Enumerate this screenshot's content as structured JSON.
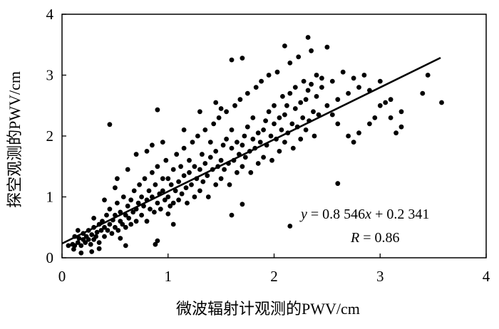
{
  "chart_data": {
    "type": "scatter",
    "xlabel": "微波辐射计观测的PWV/cm",
    "ylabel": "探空观测的PWV/cm",
    "xlim": [
      0,
      4
    ],
    "ylim": [
      0,
      4
    ],
    "xticks": [
      "0",
      "1",
      "2",
      "3",
      "4"
    ],
    "yticks": [
      "0",
      "1",
      "2",
      "3",
      "4"
    ],
    "grid": false,
    "marker_color": "#000000",
    "fit_line": {
      "slope": 0.8546,
      "intercept": 0.2341,
      "x_range": [
        0.0,
        3.57
      ]
    },
    "annotations": {
      "equation": {
        "y_var": "y",
        "eq_part": " = 0.8 546",
        "x_var": "x",
        "tail": " + 0.2 341"
      },
      "r_value": {
        "r_var": "R",
        "eq_part": " = 0.86"
      }
    },
    "points": [
      [
        0.06,
        0.2
      ],
      [
        0.1,
        0.22
      ],
      [
        0.11,
        0.14
      ],
      [
        0.12,
        0.2
      ],
      [
        0.15,
        0.25
      ],
      [
        0.16,
        0.32
      ],
      [
        0.18,
        0.08
      ],
      [
        0.18,
        0.2
      ],
      [
        0.2,
        0.3
      ],
      [
        0.2,
        0.4
      ],
      [
        0.22,
        0.25
      ],
      [
        0.23,
        0.35
      ],
      [
        0.25,
        0.3
      ],
      [
        0.25,
        0.45
      ],
      [
        0.27,
        0.22
      ],
      [
        0.28,
        0.38
      ],
      [
        0.3,
        0.3
      ],
      [
        0.3,
        0.5
      ],
      [
        0.32,
        0.35
      ],
      [
        0.33,
        0.42
      ],
      [
        0.35,
        0.25
      ],
      [
        0.35,
        0.55
      ],
      [
        0.37,
        0.45
      ],
      [
        0.38,
        0.6
      ],
      [
        0.4,
        0.35
      ],
      [
        0.4,
        0.5
      ],
      [
        0.42,
        0.7
      ],
      [
        0.43,
        0.45
      ],
      [
        0.45,
        0.55
      ],
      [
        0.45,
        0.8
      ],
      [
        0.47,
        0.4
      ],
      [
        0.48,
        0.62
      ],
      [
        0.5,
        0.5
      ],
      [
        0.5,
        0.7
      ],
      [
        0.52,
        0.9
      ],
      [
        0.53,
        0.45
      ],
      [
        0.55,
        0.6
      ],
      [
        0.55,
        0.75
      ],
      [
        0.57,
        0.55
      ],
      [
        0.58,
        1.0
      ],
      [
        0.6,
        0.7
      ],
      [
        0.6,
        0.5
      ],
      [
        0.62,
        0.85
      ],
      [
        0.63,
        0.65
      ],
      [
        0.65,
        0.95
      ],
      [
        0.65,
        0.55
      ],
      [
        0.67,
        0.75
      ],
      [
        0.68,
        1.1
      ],
      [
        0.7,
        0.8
      ],
      [
        0.7,
        0.6
      ],
      [
        0.72,
        0.9
      ],
      [
        0.73,
        1.2
      ],
      [
        0.75,
        0.7
      ],
      [
        0.75,
        1.0
      ],
      [
        0.77,
        0.85
      ],
      [
        0.78,
        1.3
      ],
      [
        0.8,
        0.95
      ],
      [
        0.8,
        0.6
      ],
      [
        0.82,
        1.1
      ],
      [
        0.83,
        0.8
      ],
      [
        0.85,
        1.0
      ],
      [
        0.85,
        1.4
      ],
      [
        0.87,
        0.75
      ],
      [
        0.88,
        1.2
      ],
      [
        0.9,
        0.9
      ],
      [
        0.9,
        1.5
      ],
      [
        0.92,
        1.05
      ],
      [
        0.93,
        0.8
      ],
      [
        0.95,
        1.3
      ],
      [
        0.95,
        1.1
      ],
      [
        0.97,
        0.95
      ],
      [
        0.98,
        1.6
      ],
      [
        1.0,
        1.0
      ],
      [
        1.0,
        1.3
      ],
      [
        1.02,
        0.85
      ],
      [
        1.03,
        1.2
      ],
      [
        1.05,
        1.45
      ],
      [
        1.05,
        0.9
      ],
      [
        1.07,
        1.1
      ],
      [
        1.08,
        1.7
      ],
      [
        1.1,
        1.25
      ],
      [
        1.1,
        0.95
      ],
      [
        1.12,
        1.5
      ],
      [
        1.13,
        1.05
      ],
      [
        1.15,
        1.35
      ],
      [
        1.15,
        1.8
      ],
      [
        1.17,
        1.15
      ],
      [
        1.18,
        0.9
      ],
      [
        1.2,
        1.4
      ],
      [
        1.2,
        1.6
      ],
      [
        1.22,
        1.2
      ],
      [
        1.23,
        1.9
      ],
      [
        1.25,
        1.0
      ],
      [
        1.25,
        1.5
      ],
      [
        1.27,
        1.3
      ],
      [
        1.28,
        2.0
      ],
      [
        1.3,
        1.45
      ],
      [
        1.3,
        1.1
      ],
      [
        1.32,
        1.7
      ],
      [
        1.33,
        1.25
      ],
      [
        1.35,
        1.55
      ],
      [
        1.35,
        2.1
      ],
      [
        1.37,
        1.35
      ],
      [
        1.38,
        1.0
      ],
      [
        1.4,
        1.65
      ],
      [
        1.4,
        1.9
      ],
      [
        1.42,
        1.45
      ],
      [
        1.43,
        2.2
      ],
      [
        1.45,
        1.2
      ],
      [
        1.45,
        1.75
      ],
      [
        1.47,
        1.5
      ],
      [
        1.48,
        2.3
      ],
      [
        1.5,
        1.6
      ],
      [
        1.5,
        1.3
      ],
      [
        1.52,
        1.85
      ],
      [
        1.53,
        1.45
      ],
      [
        1.55,
        1.95
      ],
      [
        1.55,
        2.4
      ],
      [
        1.57,
        1.55
      ],
      [
        1.58,
        1.2
      ],
      [
        1.6,
        1.8
      ],
      [
        1.6,
        2.1
      ],
      [
        1.62,
        1.6
      ],
      [
        1.63,
        2.5
      ],
      [
        1.65,
        1.4
      ],
      [
        1.65,
        1.9
      ],
      [
        1.67,
        1.7
      ],
      [
        1.68,
        2.6
      ],
      [
        1.7,
        1.85
      ],
      [
        1.7,
        1.5
      ],
      [
        1.72,
        2.0
      ],
      [
        1.73,
        1.65
      ],
      [
        1.75,
        2.15
      ],
      [
        1.75,
        2.7
      ],
      [
        1.77,
        1.75
      ],
      [
        1.78,
        1.4
      ],
      [
        1.8,
        1.95
      ],
      [
        1.8,
        2.3
      ],
      [
        1.82,
        1.8
      ],
      [
        1.83,
        2.8
      ],
      [
        1.85,
        1.55
      ],
      [
        1.85,
        2.05
      ],
      [
        1.87,
        1.9
      ],
      [
        1.88,
        2.9
      ],
      [
        1.9,
        2.1
      ],
      [
        1.9,
        1.65
      ],
      [
        1.92,
        2.25
      ],
      [
        1.93,
        1.85
      ],
      [
        1.95,
        2.4
      ],
      [
        1.95,
        3.0
      ],
      [
        1.97,
        2.0
      ],
      [
        1.98,
        1.6
      ],
      [
        2.0,
        2.2
      ],
      [
        2.0,
        2.5
      ],
      [
        2.02,
        1.95
      ],
      [
        2.03,
        3.05
      ],
      [
        2.05,
        1.75
      ],
      [
        2.05,
        2.3
      ],
      [
        2.07,
        2.1
      ],
      [
        2.08,
        2.65
      ],
      [
        2.1,
        2.35
      ],
      [
        2.1,
        1.9
      ],
      [
        2.12,
        2.5
      ],
      [
        2.13,
        2.05
      ],
      [
        2.15,
        2.7
      ],
      [
        2.15,
        3.2
      ],
      [
        2.17,
        2.2
      ],
      [
        2.18,
        1.8
      ],
      [
        2.2,
        2.45
      ],
      [
        2.2,
        2.8
      ],
      [
        2.22,
        2.15
      ],
      [
        2.23,
        3.3
      ],
      [
        2.25,
        1.95
      ],
      [
        2.25,
        2.55
      ],
      [
        2.27,
        2.3
      ],
      [
        2.28,
        2.9
      ],
      [
        2.3,
        2.6
      ],
      [
        2.3,
        2.1
      ],
      [
        2.32,
        2.75
      ],
      [
        2.33,
        2.25
      ],
      [
        2.35,
        2.85
      ],
      [
        2.35,
        3.4
      ],
      [
        2.37,
        2.4
      ],
      [
        2.38,
        2.0
      ],
      [
        2.4,
        2.65
      ],
      [
        2.4,
        3.0
      ],
      [
        2.42,
        2.35
      ],
      [
        2.45,
        2.8
      ],
      [
        2.5,
        2.5
      ],
      [
        2.55,
        2.9
      ],
      [
        2.6,
        2.6
      ],
      [
        2.65,
        3.05
      ],
      [
        2.7,
        2.7
      ],
      [
        2.75,
        2.95
      ],
      [
        2.8,
        2.8
      ],
      [
        2.85,
        3.0
      ],
      [
        2.9,
        2.75
      ],
      [
        3.0,
        2.9
      ],
      [
        3.1,
        2.6
      ],
      [
        3.2,
        2.4
      ],
      [
        0.45,
        2.19
      ],
      [
        0.9,
        2.43
      ],
      [
        1.6,
        3.25
      ],
      [
        1.7,
        3.28
      ],
      [
        2.1,
        3.48
      ],
      [
        2.32,
        3.62
      ],
      [
        2.5,
        3.46
      ],
      [
        3.45,
        3.0
      ],
      [
        3.58,
        2.55
      ],
      [
        3.15,
        2.05
      ],
      [
        2.15,
        0.52
      ],
      [
        0.88,
        0.22
      ],
      [
        0.9,
        0.28
      ],
      [
        1.6,
        0.7
      ],
      [
        1.7,
        0.88
      ],
      [
        2.6,
        1.22
      ],
      [
        1.0,
        0.72
      ],
      [
        1.05,
        0.55
      ],
      [
        0.6,
        0.2
      ],
      [
        0.55,
        0.32
      ],
      [
        0.35,
        0.15
      ],
      [
        0.28,
        0.1
      ],
      [
        0.15,
        0.45
      ],
      [
        0.12,
        0.35
      ],
      [
        0.3,
        0.65
      ],
      [
        0.4,
        0.95
      ],
      [
        0.5,
        1.15
      ],
      [
        0.52,
        1.3
      ],
      [
        0.62,
        1.45
      ],
      [
        0.7,
        1.7
      ],
      [
        0.8,
        1.75
      ],
      [
        0.85,
        1.85
      ],
      [
        0.95,
        1.9
      ],
      [
        1.15,
        2.1
      ],
      [
        1.3,
        2.4
      ],
      [
        1.45,
        2.55
      ],
      [
        1.5,
        2.45
      ],
      [
        2.45,
        2.95
      ],
      [
        2.6,
        2.2
      ],
      [
        2.7,
        2.0
      ],
      [
        2.75,
        1.9
      ],
      [
        2.8,
        2.05
      ],
      [
        2.9,
        2.2
      ],
      [
        3.0,
        2.5
      ],
      [
        3.05,
        2.55
      ],
      [
        3.2,
        2.15
      ],
      [
        3.4,
        2.7
      ],
      [
        3.1,
        2.3
      ],
      [
        2.95,
        2.3
      ],
      [
        2.55,
        2.35
      ]
    ]
  }
}
